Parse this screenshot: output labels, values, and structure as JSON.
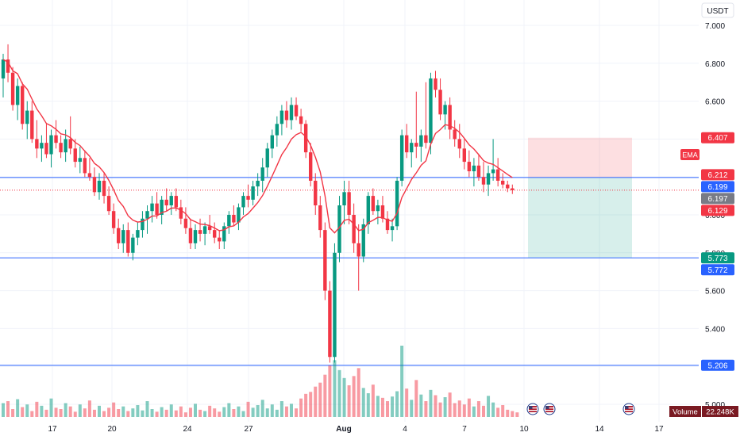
{
  "currency_label": "USDT",
  "chart_data": {
    "type": "candlestick",
    "y_ticks": [
      7.0,
      6.8,
      6.6,
      6.4,
      6.2,
      6.0,
      5.8,
      5.6,
      5.4,
      5.2,
      5.0
    ],
    "y_tick_labels": [
      "7.000",
      "6.800",
      "6.600",
      "",
      "",
      "6.000",
      "5.800",
      "5.600",
      "5.400",
      "",
      "5.000"
    ],
    "x_labels": [
      "17",
      "20",
      "24",
      "27",
      "Aug",
      "4",
      "7",
      "10",
      "14",
      "17"
    ],
    "ylim": [
      4.96,
      7.06
    ],
    "horizontal_lines": [
      {
        "price": 6.197,
        "color": "#2962ff"
      },
      {
        "price": 5.773,
        "color": "#2962ff"
      },
      {
        "price": 5.206,
        "color": "#2962ff"
      }
    ],
    "position": {
      "entry": 6.197,
      "stop": 6.407,
      "target": 5.773
    },
    "price_labels": [
      {
        "text": "6.407",
        "price": 6.407,
        "color": "#f23645"
      },
      {
        "text": "6.212",
        "price": 6.212,
        "color": "#f23645"
      },
      {
        "text": "6.199",
        "price": 6.199,
        "color": "#2962ff"
      },
      {
        "text": "6.197",
        "price": 6.197,
        "color": "#787b86"
      },
      {
        "text": "6.129",
        "price": 6.129,
        "color": "#f23645"
      },
      {
        "text": "5.773",
        "price": 5.773,
        "color": "#089981"
      },
      {
        "text": "5.772",
        "price": 5.772,
        "color": "#2962ff"
      },
      {
        "text": "5.206",
        "price": 5.206,
        "color": "#2962ff"
      }
    ],
    "ema_label": "EMA",
    "volume_label": "Volume",
    "volume_value": "22.248K",
    "colors": {
      "up": "#089981",
      "down": "#f23645",
      "ema": "#f23645",
      "grid": "#f0f3fa",
      "text": "#131722"
    },
    "candles": [
      [
        6.72,
        6.85,
        6.62,
        6.82
      ],
      [
        6.82,
        6.9,
        6.7,
        6.75
      ],
      [
        6.75,
        6.78,
        6.55,
        6.58
      ],
      [
        6.58,
        6.72,
        6.5,
        6.68
      ],
      [
        6.68,
        6.7,
        6.45,
        6.48
      ],
      [
        6.48,
        6.6,
        6.4,
        6.55
      ],
      [
        6.55,
        6.6,
        6.38,
        6.4
      ],
      [
        6.4,
        6.5,
        6.3,
        6.35
      ],
      [
        6.35,
        6.42,
        6.28,
        6.38
      ],
      [
        6.38,
        6.48,
        6.3,
        6.32
      ],
      [
        6.32,
        6.45,
        6.25,
        6.42
      ],
      [
        6.42,
        6.5,
        6.35,
        6.38
      ],
      [
        6.38,
        6.42,
        6.3,
        6.33
      ],
      [
        6.33,
        6.45,
        6.28,
        6.4
      ],
      [
        6.4,
        6.52,
        6.32,
        6.35
      ],
      [
        6.35,
        6.4,
        6.25,
        6.28
      ],
      [
        6.28,
        6.36,
        6.22,
        6.3
      ],
      [
        6.3,
        6.34,
        6.2,
        6.22
      ],
      [
        6.22,
        6.3,
        6.18,
        6.2
      ],
      [
        6.2,
        6.25,
        6.1,
        6.12
      ],
      [
        6.12,
        6.22,
        6.08,
        6.18
      ],
      [
        6.18,
        6.22,
        6.06,
        6.1
      ],
      [
        6.1,
        6.15,
        6.0,
        6.02
      ],
      [
        6.02,
        6.06,
        5.9,
        5.93
      ],
      [
        5.93,
        5.98,
        5.82,
        5.85
      ],
      [
        5.85,
        5.95,
        5.8,
        5.92
      ],
      [
        5.92,
        5.96,
        5.78,
        5.8
      ],
      [
        5.8,
        5.9,
        5.76,
        5.88
      ],
      [
        5.88,
        5.96,
        5.84,
        5.92
      ],
      [
        5.92,
        6.02,
        5.88,
        5.98
      ],
      [
        5.98,
        6.05,
        5.9,
        6.02
      ],
      [
        6.02,
        6.1,
        5.96,
        6.06
      ],
      [
        6.06,
        6.12,
        5.98,
        6.0
      ],
      [
        6.0,
        6.1,
        5.95,
        6.08
      ],
      [
        6.08,
        6.14,
        6.02,
        6.05
      ],
      [
        6.05,
        6.12,
        6.0,
        6.1
      ],
      [
        6.1,
        6.14,
        6.02,
        6.04
      ],
      [
        6.04,
        6.08,
        5.95,
        5.98
      ],
      [
        5.98,
        6.04,
        5.9,
        5.93
      ],
      [
        5.93,
        5.98,
        5.82,
        5.85
      ],
      [
        5.85,
        5.95,
        5.82,
        5.92
      ],
      [
        5.92,
        5.98,
        5.86,
        5.9
      ],
      [
        5.9,
        5.96,
        5.84,
        5.94
      ],
      [
        5.94,
        6.0,
        5.9,
        5.92
      ],
      [
        5.92,
        5.96,
        5.85,
        5.88
      ],
      [
        5.88,
        5.92,
        5.82,
        5.86
      ],
      [
        5.86,
        5.96,
        5.82,
        5.94
      ],
      [
        5.94,
        6.02,
        5.9,
        6.0
      ],
      [
        6.0,
        6.05,
        5.94,
        5.96
      ],
      [
        5.96,
        6.06,
        5.92,
        6.04
      ],
      [
        6.04,
        6.12,
        6.0,
        6.1
      ],
      [
        6.1,
        6.16,
        6.04,
        6.08
      ],
      [
        6.08,
        6.18,
        6.05,
        6.15
      ],
      [
        6.15,
        6.22,
        6.1,
        6.18
      ],
      [
        6.18,
        6.3,
        6.12,
        6.25
      ],
      [
        6.25,
        6.38,
        6.2,
        6.35
      ],
      [
        6.35,
        6.45,
        6.3,
        6.42
      ],
      [
        6.42,
        6.52,
        6.36,
        6.48
      ],
      [
        6.48,
        6.58,
        6.42,
        6.55
      ],
      [
        6.55,
        6.6,
        6.46,
        6.5
      ],
      [
        6.5,
        6.62,
        6.45,
        6.58
      ],
      [
        6.58,
        6.62,
        6.5,
        6.52
      ],
      [
        6.52,
        6.56,
        6.44,
        6.48
      ],
      [
        6.48,
        6.5,
        6.3,
        6.33
      ],
      [
        6.33,
        6.38,
        6.15,
        6.18
      ],
      [
        6.18,
        6.22,
        6.0,
        6.05
      ],
      [
        6.05,
        6.1,
        5.88,
        5.92
      ],
      [
        5.92,
        5.96,
        5.55,
        5.6
      ],
      [
        5.6,
        5.65,
        5.22,
        5.25
      ],
      [
        5.25,
        5.85,
        5.22,
        5.8
      ],
      [
        5.8,
        6.1,
        5.75,
        6.05
      ],
      [
        6.05,
        6.18,
        5.95,
        6.12
      ],
      [
        6.12,
        6.18,
        5.95,
        6.0
      ],
      [
        6.0,
        6.06,
        5.8,
        5.85
      ],
      [
        5.85,
        5.95,
        5.6,
        5.78
      ],
      [
        5.78,
        5.98,
        5.75,
        5.95
      ],
      [
        5.95,
        6.12,
        5.9,
        6.1
      ],
      [
        6.1,
        6.14,
        6.0,
        6.02
      ],
      [
        6.02,
        6.08,
        5.95,
        6.05
      ],
      [
        6.05,
        6.1,
        5.96,
        5.98
      ],
      [
        5.98,
        6.02,
        5.9,
        5.92
      ],
      [
        5.92,
        5.98,
        5.86,
        5.94
      ],
      [
        5.94,
        6.2,
        5.92,
        6.18
      ],
      [
        6.18,
        6.45,
        6.15,
        6.42
      ],
      [
        6.42,
        6.48,
        6.3,
        6.33
      ],
      [
        6.33,
        6.4,
        6.25,
        6.38
      ],
      [
        6.38,
        6.65,
        6.3,
        6.36
      ],
      [
        6.36,
        6.45,
        6.28,
        6.42
      ],
      [
        6.42,
        6.7,
        6.35,
        6.38
      ],
      [
        6.38,
        6.75,
        6.32,
        6.72
      ],
      [
        6.72,
        6.76,
        6.62,
        6.66
      ],
      [
        6.66,
        6.72,
        6.5,
        6.53
      ],
      [
        6.53,
        6.6,
        6.45,
        6.58
      ],
      [
        6.58,
        6.62,
        6.4,
        6.45
      ],
      [
        6.45,
        6.5,
        6.36,
        6.4
      ],
      [
        6.4,
        6.48,
        6.3,
        6.35
      ],
      [
        6.35,
        6.4,
        6.24,
        6.28
      ],
      [
        6.28,
        6.34,
        6.2,
        6.23
      ],
      [
        6.23,
        6.3,
        6.15,
        6.26
      ],
      [
        6.26,
        6.32,
        6.18,
        6.2
      ],
      [
        6.2,
        6.28,
        6.12,
        6.16
      ],
      [
        6.16,
        6.26,
        6.1,
        6.22
      ],
      [
        6.22,
        6.4,
        6.18,
        6.24
      ],
      [
        6.24,
        6.3,
        6.15,
        6.18
      ],
      [
        6.18,
        6.22,
        6.14,
        6.16
      ],
      [
        6.16,
        6.18,
        6.12,
        6.14
      ],
      [
        6.14,
        6.16,
        6.11,
        6.13
      ]
    ],
    "volume": [
      2.1,
      2.4,
      1.2,
      2.7,
      1.5,
      1.9,
      0.9,
      2.3,
      1.7,
      1.1,
      2.8,
      1.4,
      1.2,
      2.1,
      1.6,
      0.8,
      1.9,
      1.3,
      2.5,
      1.1,
      1.7,
      0.9,
      1.4,
      2.2,
      1.2,
      1.6,
      0.9,
      1.3,
      1.8,
      1.0,
      2.4,
      1.2,
      0.8,
      1.5,
      1.1,
      1.9,
      1.0,
      1.6,
      0.7,
      1.4,
      2.0,
      1.1,
      0.9,
      1.7,
      1.3,
      0.8,
      1.5,
      2.1,
      1.2,
      1.6,
      0.9,
      2.3,
      1.4,
      1.8,
      2.6,
      1.3,
      1.9,
      1.1,
      2.4,
      1.6,
      2.0,
      1.3,
      2.8,
      3.5,
      3.8,
      4.6,
      5.2,
      6.4,
      7.8,
      8.6,
      7.1,
      5.9,
      4.8,
      6.2,
      7.4,
      4.4,
      3.6,
      4.9,
      3.2,
      2.9,
      2.4,
      3.1,
      3.9,
      10.8,
      4.3,
      2.6,
      5.6,
      3.4,
      2.4,
      4.1,
      3.3,
      2.2,
      3.0,
      3.7,
      2.1,
      2.5,
      1.9,
      2.8,
      1.6,
      2.4,
      1.7,
      3.2,
      2.2,
      1.4,
      1.8,
      1.1,
      0.9,
      0.7
    ]
  }
}
